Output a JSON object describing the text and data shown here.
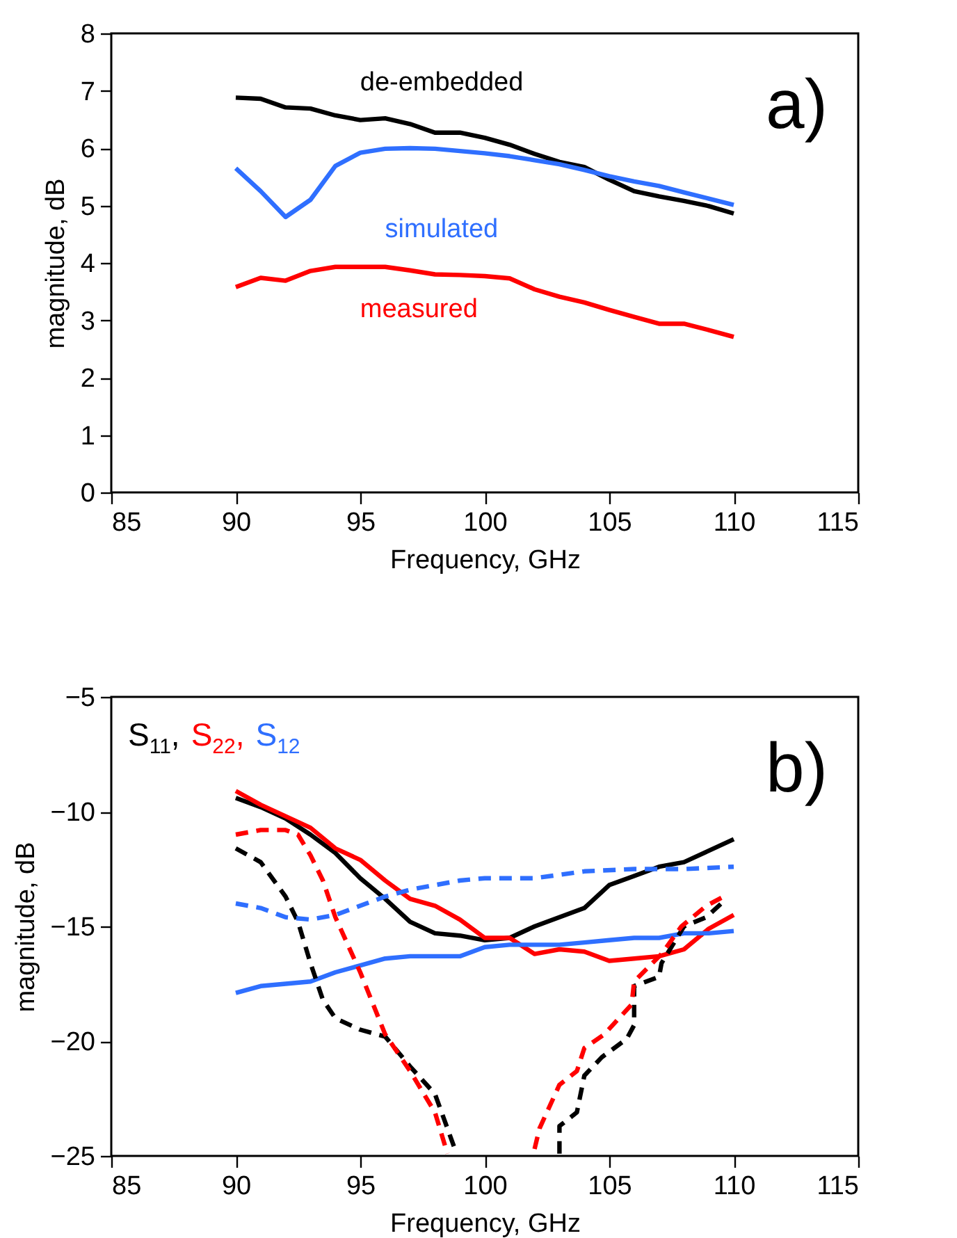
{
  "chart_data": [
    {
      "type": "line",
      "xlabel": "Frequency, GHz",
      "ylabel": "magnitude, dB",
      "xlim": [
        85,
        115
      ],
      "xticks": [
        85,
        90,
        95,
        100,
        105,
        110,
        115
      ],
      "ylim": [
        0,
        8
      ],
      "yticks": [
        0,
        1,
        2,
        3,
        4,
        5,
        6,
        7,
        8
      ],
      "annotations": [
        "a)"
      ],
      "x": [
        90,
        91,
        92,
        93,
        94,
        95,
        96,
        97,
        98,
        99,
        100,
        101,
        102,
        103,
        104,
        105,
        106,
        107,
        108,
        109,
        110
      ],
      "series": [
        {
          "name": "de-embedded",
          "color": "#000000",
          "values": [
            6.88,
            6.86,
            6.71,
            6.69,
            6.57,
            6.49,
            6.52,
            6.42,
            6.27,
            6.27,
            6.18,
            6.06,
            5.9,
            5.76,
            5.67,
            5.45,
            5.25,
            5.16,
            5.08,
            4.99,
            4.86
          ]
        },
        {
          "name": "simulated",
          "color": "#2f6fff",
          "values": [
            5.65,
            5.25,
            4.8,
            5.1,
            5.69,
            5.92,
            5.99,
            6.0,
            5.99,
            5.95,
            5.91,
            5.86,
            5.79,
            5.72,
            5.62,
            5.51,
            5.42,
            5.34,
            5.23,
            5.12,
            5.01
          ]
        },
        {
          "name": "measured",
          "color": "#ff0000",
          "values": [
            3.58,
            3.74,
            3.69,
            3.86,
            3.93,
            3.93,
            3.93,
            3.87,
            3.8,
            3.79,
            3.77,
            3.73,
            3.54,
            3.41,
            3.31,
            3.18,
            3.06,
            2.94,
            2.94,
            2.83,
            2.71
          ]
        }
      ]
    },
    {
      "type": "line",
      "xlabel": "Frequency, GHz",
      "ylabel": "magnitude, dB",
      "xlim": [
        85,
        115
      ],
      "xticks": [
        85,
        90,
        95,
        100,
        105,
        110,
        115
      ],
      "ylim": [
        -25,
        -5
      ],
      "yticks": [
        -25,
        -20,
        -15,
        -10,
        -5
      ],
      "annotations": [
        "b)"
      ],
      "legend": "top left",
      "series": [
        {
          "name": "S$_{11}$,",
          "color": "#000000",
          "x": [
            90,
            91,
            92,
            93,
            94,
            95,
            96,
            97,
            98,
            99,
            100,
            101,
            102,
            103,
            104,
            105,
            106,
            107,
            108,
            109,
            110
          ],
          "values": [
            -9.4,
            -9.8,
            -10.3,
            -11.0,
            -11.8,
            -12.9,
            -13.8,
            -14.8,
            -15.3,
            -15.4,
            -15.6,
            -15.5,
            -15.0,
            -14.6,
            -14.2,
            -13.2,
            -12.8,
            -12.4,
            -12.2,
            -11.7,
            -11.2
          ]
        },
        {
          "name": "S$_{22}$,",
          "color": "#ff0000",
          "x": [
            90,
            91,
            92,
            93,
            94,
            95,
            96,
            97,
            98,
            99,
            100,
            101,
            102,
            103,
            104,
            105,
            106,
            107,
            108,
            109,
            110
          ],
          "values": [
            -9.1,
            -9.7,
            -10.2,
            -10.7,
            -11.6,
            -12.1,
            -13.0,
            -13.8,
            -14.1,
            -14.7,
            -15.5,
            -15.5,
            -16.2,
            -16.0,
            -16.1,
            -16.5,
            -16.4,
            -16.3,
            -16.0,
            -15.1,
            -14.5
          ]
        },
        {
          "name": "S$_{12}$",
          "color": "#2f6fff",
          "x": [
            90,
            91,
            92,
            93,
            94,
            95,
            96,
            97,
            98,
            99,
            100,
            101,
            102,
            103,
            104,
            105,
            106,
            107,
            108,
            109,
            110
          ],
          "values": [
            -17.9,
            -17.6,
            -17.5,
            -17.4,
            -17.0,
            -16.7,
            -16.4,
            -16.3,
            -16.3,
            -16.3,
            -15.9,
            -15.8,
            -15.8,
            -15.8,
            -15.7,
            -15.6,
            -15.5,
            -15.5,
            -15.3,
            -15.3,
            -15.2
          ]
        },
        {
          "color": "#000000",
          "line_style": "dashed",
          "x": [
            90,
            91,
            92,
            92.5,
            93,
            93.5,
            94,
            95,
            96,
            97,
            98,
            98.8,
            100,
            103,
            103,
            103.7,
            104,
            104.7,
            105.7,
            106,
            106,
            107,
            107.1,
            108,
            108.9,
            109.5
          ],
          "values": [
            -11.6,
            -12.2,
            -13.7,
            -14.8,
            -16.6,
            -18.2,
            -19.0,
            -19.5,
            -19.8,
            -21.1,
            -22.3,
            -24.7,
            null,
            -24.9,
            -23.7,
            -23.1,
            -21.5,
            -20.7,
            -19.9,
            -19.3,
            -17.6,
            -17.2,
            -16.6,
            -15.0,
            -14.6,
            -14.0
          ]
        },
        {
          "color": "#ff0000",
          "line_style": "dashed",
          "x": [
            90,
            91,
            92,
            92.5,
            93,
            93.5,
            94,
            95,
            96,
            97,
            98,
            98.5,
            100,
            102,
            102.2,
            103,
            103.7,
            104,
            104.8,
            105.9,
            106,
            107.1,
            107.9,
            108.9,
            109.6
          ],
          "values": [
            -11.0,
            -10.8,
            -10.8,
            -11.0,
            -11.9,
            -13.0,
            -14.6,
            -17.0,
            -19.7,
            -21.3,
            -23.1,
            -24.9,
            null,
            -24.7,
            -23.8,
            -21.9,
            -21.3,
            -20.3,
            -19.7,
            -18.4,
            -17.4,
            -16.2,
            -15.0,
            -14.1,
            -13.7
          ]
        },
        {
          "color": "#2f6fff",
          "line_style": "dashed",
          "x": [
            90,
            91,
            92,
            93,
            94,
            95,
            96,
            97,
            98,
            99,
            100,
            102,
            104,
            106,
            108,
            110
          ],
          "values": [
            -14.0,
            -14.2,
            -14.6,
            -14.7,
            -14.5,
            -14.1,
            -13.7,
            -13.4,
            -13.2,
            -13.0,
            -12.9,
            -12.9,
            -12.6,
            -12.5,
            -12.5,
            -12.4
          ]
        }
      ]
    }
  ]
}
